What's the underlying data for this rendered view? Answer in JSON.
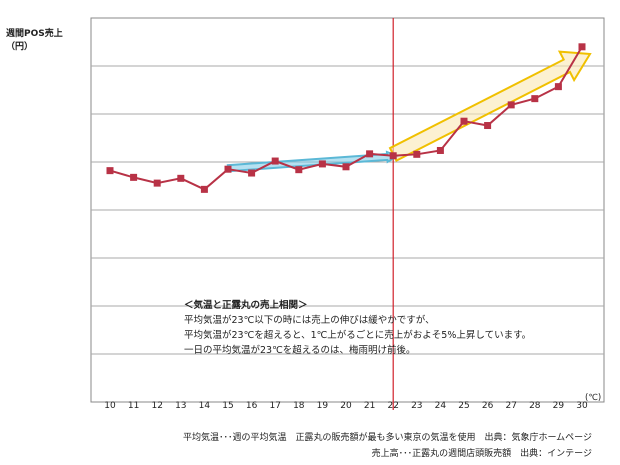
{
  "chart_data": {
    "type": "line",
    "ylabel": "週間POS売上\n（円）",
    "x_unit": "(℃)",
    "categories": [
      "10",
      "11",
      "12",
      "13",
      "14",
      "15",
      "16",
      "17",
      "18",
      "19",
      "20",
      "21",
      "22",
      "23",
      "24",
      "25",
      "26",
      "27",
      "28",
      "29",
      "30"
    ],
    "values": [
      48.2,
      46.8,
      45.6,
      46.6,
      44.3,
      48.5,
      47.7,
      50.2,
      48.4,
      49.6,
      49.0,
      51.7,
      51.3,
      51.6,
      52.4,
      58.5,
      57.6,
      61.9,
      63.2,
      65.7,
      74.0
    ],
    "ylim": [
      0,
      80
    ],
    "gridlines": [
      0,
      10,
      20,
      30,
      40,
      50,
      60,
      70,
      80
    ],
    "threshold_x": "22",
    "trend_slow": {
      "from": "15",
      "to": "22",
      "y_from": 48.7,
      "y_to": 51.2,
      "color": "#5bb8d6"
    },
    "trend_fast": {
      "from": "22",
      "to": "30",
      "y_from": 51.6,
      "y_to": 72.5,
      "color": "#f0c000"
    },
    "series_color": "#b83246",
    "threshold_color": "#d0202a",
    "annotation": {
      "title": "＜気温と正露丸の売上相関＞",
      "lines": [
        "平均気温が23℃以下の時には売上の伸びは緩やかですが、",
        "平均気温が23℃を超えると、1℃上がるごとに売上がおよそ5%上昇しています。",
        "一日の平均気温が23℃を超えるのは、梅雨明け前後。"
      ]
    },
    "footnotes": [
      "平均気温･･･週の平均気温　正露丸の販売額が最も多い東京の気温を使用　出典：気象庁ホームページ",
      "売上高･･･正露丸の週間店頭販売額　出典：インテージ"
    ]
  }
}
